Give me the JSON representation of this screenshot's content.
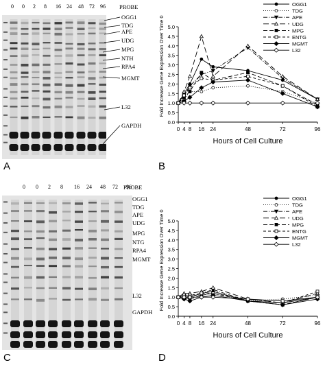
{
  "panels": {
    "A": {
      "letter": "A",
      "lanes": [
        "0",
        "0",
        "2",
        "8",
        "16",
        "24",
        "48",
        "72",
        "96"
      ],
      "probe_header": "PROBE",
      "probes": [
        "OGG1",
        "TDG",
        "APE",
        "UDG",
        "MPG",
        "NTH",
        "RPA4",
        "MGMT",
        "L32",
        "GAPDH"
      ]
    },
    "C": {
      "letter": "C",
      "lanes": [
        "0",
        "0",
        "2",
        "8",
        "16",
        "24",
        "48",
        "72",
        "96"
      ],
      "probe_header": "PROBE",
      "probes": [
        "OGG1",
        "TDG",
        "APE",
        "UDG",
        "MPG",
        "NTG",
        "RPA4",
        "MGMT",
        "L32",
        "GAPDH"
      ]
    },
    "B": {
      "letter": "B"
    },
    "D": {
      "letter": "D"
    }
  },
  "chart_data": [
    {
      "type": "line",
      "panel": "B",
      "xlabel": "Hours of Cell Culture",
      "ylabel": "Fold Increase Gene Expression Over Time 0",
      "x": [
        0,
        4,
        8,
        16,
        24,
        48,
        72,
        96
      ],
      "xticks": [
        0,
        4,
        8,
        16,
        24,
        48,
        72,
        96
      ],
      "xlim": [
        0,
        96
      ],
      "ylim": [
        0,
        5
      ],
      "yticks": [
        "0.0",
        "0.5",
        "1.0",
        "1.5",
        "2.0",
        "2.5",
        "3.0",
        "3.5",
        "4.0",
        "4.5",
        "5.0"
      ],
      "legend_position": "top-right",
      "series": [
        {
          "name": "OGG1",
          "values": [
            1.0,
            1.5,
            2.0,
            3.3,
            2.9,
            2.7,
            2.2,
            1.2
          ],
          "dash": "",
          "marker": "circle-filled"
        },
        {
          "name": "TDG",
          "values": [
            1.0,
            1.2,
            1.6,
            1.6,
            1.8,
            1.9,
            1.6,
            1.0
          ],
          "dash": "1,2",
          "marker": "circle-open"
        },
        {
          "name": "APE",
          "values": [
            1.0,
            1.4,
            1.9,
            2.5,
            2.7,
            3.9,
            2.3,
            1.2
          ],
          "dash": "6,2,1,2",
          "marker": "tri-down-filled"
        },
        {
          "name": "UDG",
          "values": [
            1.0,
            1.6,
            2.4,
            4.5,
            2.4,
            4.0,
            2.4,
            1.2
          ],
          "dash": "8,4",
          "marker": "tri-up-open"
        },
        {
          "name": "MPG",
          "values": [
            1.0,
            1.3,
            1.6,
            2.6,
            2.2,
            2.6,
            1.9,
            0.9
          ],
          "dash": "6,3",
          "marker": "square-filled"
        },
        {
          "name": "ENTG",
          "values": [
            1.0,
            1.4,
            1.8,
            2.3,
            2.2,
            2.4,
            1.9,
            0.8
          ],
          "dash": "4,3",
          "marker": "square-open"
        },
        {
          "name": "MGMT",
          "values": [
            1.0,
            1.1,
            1.3,
            1.8,
            2.1,
            2.2,
            1.5,
            0.8
          ],
          "dash": "",
          "marker": "diamond-filled"
        },
        {
          "name": "L32",
          "values": [
            1.0,
            1.0,
            1.0,
            1.0,
            1.0,
            1.0,
            1.0,
            1.0
          ],
          "dash": "",
          "marker": "diamond-open"
        }
      ]
    },
    {
      "type": "line",
      "panel": "D",
      "xlabel": "Hours of Cell Culture",
      "ylabel": "Fold Increase Gene Expression Over Time 0",
      "x": [
        0,
        4,
        8,
        16,
        24,
        48,
        72,
        96
      ],
      "xticks": [
        0,
        4,
        8,
        16,
        24,
        48,
        72,
        96
      ],
      "xlim": [
        0,
        96
      ],
      "ylim": [
        0,
        5
      ],
      "yticks": [
        "0.0",
        "0.5",
        "1.0",
        "1.5",
        "2.0",
        "2.5",
        "3.0",
        "3.5",
        "4.0",
        "4.5",
        "5.0"
      ],
      "legend_position": "top-right",
      "series": [
        {
          "name": "OGG1",
          "values": [
            1.0,
            1.1,
            1.0,
            1.2,
            1.3,
            0.8,
            0.7,
            1.0
          ],
          "dash": "",
          "marker": "circle-filled"
        },
        {
          "name": "TDG",
          "values": [
            1.0,
            1.1,
            1.1,
            1.1,
            1.2,
            0.8,
            0.9,
            1.1
          ],
          "dash": "1,2",
          "marker": "circle-open"
        },
        {
          "name": "APE",
          "values": [
            1.0,
            0.9,
            1.0,
            1.2,
            1.4,
            0.8,
            0.6,
            1.0
          ],
          "dash": "6,2,1,2",
          "marker": "tri-down-filled"
        },
        {
          "name": "UDG",
          "values": [
            1.0,
            1.2,
            1.2,
            1.3,
            1.5,
            0.9,
            0.7,
            1.2
          ],
          "dash": "8,4",
          "marker": "tri-up-open"
        },
        {
          "name": "MPG",
          "values": [
            1.0,
            1.0,
            0.9,
            1.1,
            1.2,
            0.8,
            0.6,
            1.0
          ],
          "dash": "6,3",
          "marker": "square-filled"
        },
        {
          "name": "ENTG",
          "values": [
            1.0,
            1.1,
            1.1,
            1.2,
            1.2,
            0.9,
            0.7,
            1.3
          ],
          "dash": "4,3",
          "marker": "square-open"
        },
        {
          "name": "MGMT",
          "values": [
            1.0,
            0.9,
            0.8,
            1.0,
            1.1,
            0.8,
            0.6,
            0.9
          ],
          "dash": "",
          "marker": "diamond-filled"
        },
        {
          "name": "L32",
          "values": [
            1.0,
            1.0,
            1.0,
            1.0,
            1.0,
            0.9,
            0.8,
            1.0
          ],
          "dash": "",
          "marker": "diamond-open"
        }
      ]
    }
  ]
}
